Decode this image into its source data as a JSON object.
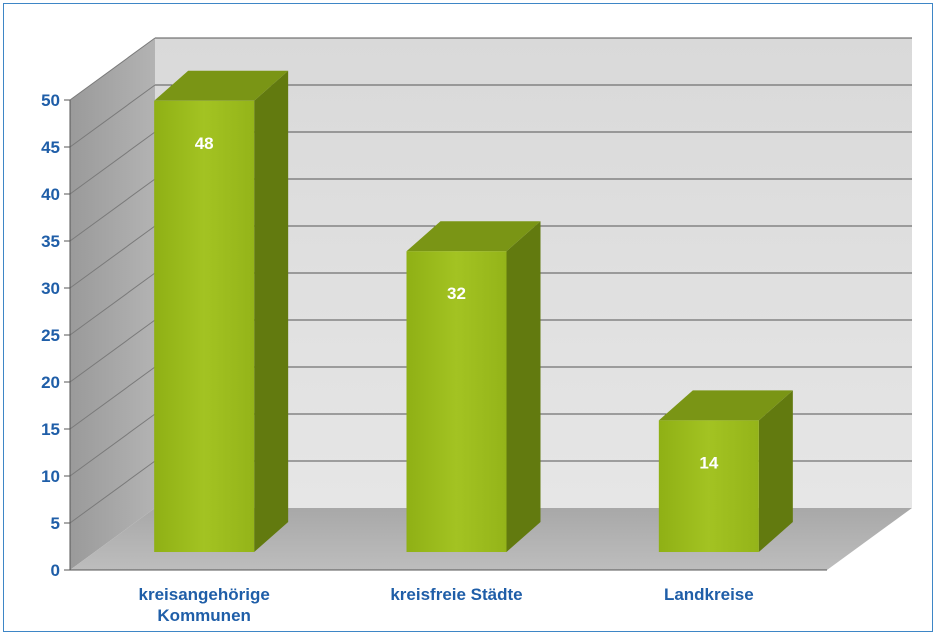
{
  "chart_data": {
    "type": "bar",
    "categories": [
      "kreisangehörige Kommunen",
      "kreisfreie Städte",
      "Landkreise"
    ],
    "category_lines": [
      [
        "kreisangehörige",
        "Kommunen"
      ],
      [
        "kreisfreie Städte"
      ],
      [
        "Landkreise"
      ]
    ],
    "values": [
      48,
      32,
      14
    ],
    "ylim": [
      0,
      50
    ],
    "yticks": [
      "0",
      "5",
      "10",
      "15",
      "20",
      "25",
      "30",
      "35",
      "40",
      "45",
      "50"
    ],
    "title": "",
    "xlabel": "",
    "ylabel": "",
    "grid": true,
    "legend": "none",
    "three_d": true,
    "colors": {
      "bar_front": "#9bbb1a",
      "bar_top": "#7a9515",
      "bar_side": "#627a0f",
      "back_wall": "#dcdcdc",
      "side_wall": "#a9a9a9",
      "floor": "#b4b4b4",
      "axis_text": "#1f5ea8",
      "label_text": "#ffffff",
      "frame": "#3e86c6"
    }
  }
}
